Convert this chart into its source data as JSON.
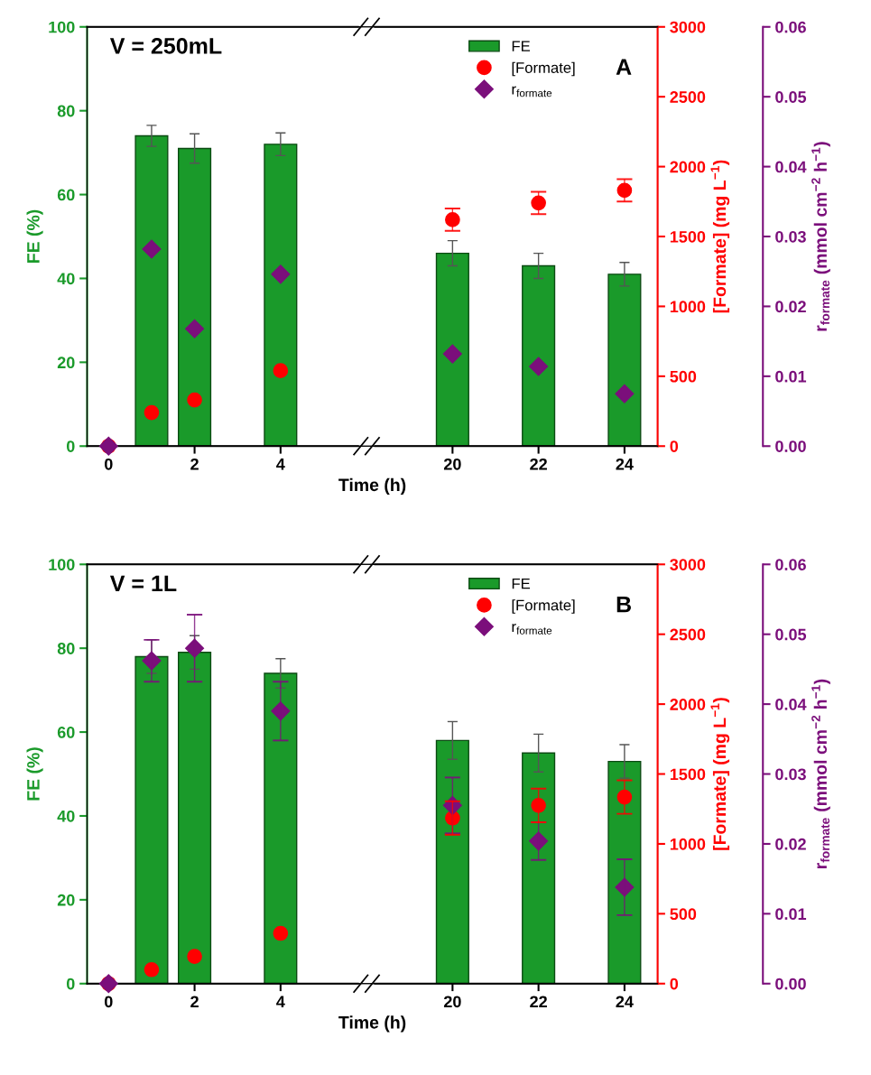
{
  "chart_data": [
    {
      "type": "bar",
      "categories": [
        "0",
        null,
        "2",
        null,
        "4",
        null,
        null,
        null,
        "20",
        null,
        "22",
        null,
        "24"
      ],
      "xlabel": "Time (h)",
      "ylabel": "FE (%)",
      "y2label": "[Formate] (mg L$^{−1}$)",
      "y3label": "r$_{formate}$ (mmol cm$^{−2}$ h$^{−1}$)",
      "annotations": [
        "V = 250mL",
        "A"
      ],
      "ylim": [
        0,
        100
      ],
      "yticks": [
        0,
        20,
        40,
        60,
        80,
        100
      ],
      "y2lim": [
        0,
        3000
      ],
      "y2ticks": [
        0,
        500,
        1000,
        1500,
        2000,
        2500,
        3000
      ],
      "y3lim": [
        0,
        0.06
      ],
      "y3ticks": [
        {
          "value": 0,
          "label": "0.00"
        },
        {
          "value": 0.01,
          "label": "0.01"
        },
        {
          "value": 0.02,
          "label": "0.02"
        },
        {
          "value": 0.03,
          "label": "0.03"
        },
        {
          "value": 0.04,
          "label": "0.04"
        },
        {
          "value": 0.05,
          "label": "0.05"
        },
        {
          "value": 0.06,
          "label": "0.06"
        }
      ],
      "legend": "top right",
      "series": [
        {
          "name": "FE",
          "color": "#1a9a2a",
          "values": [
            null,
            74,
            71,
            null,
            72,
            null,
            null,
            null,
            46,
            null,
            43,
            null,
            41
          ],
          "errors": [
            null,
            2.5,
            3.5,
            null,
            2.7,
            null,
            null,
            null,
            3,
            null,
            3,
            null,
            2.8
          ]
        },
        {
          "name": "[Formate]",
          "type": "scatter",
          "axis": "y2",
          "marker": "circle",
          "color": "#ff0000",
          "values": [
            0,
            240,
            330,
            null,
            540,
            null,
            null,
            null,
            1620,
            null,
            1740,
            null,
            1830
          ],
          "errors": [
            null,
            null,
            null,
            null,
            null,
            null,
            null,
            null,
            80,
            null,
            80,
            null,
            80
          ]
        },
        {
          "name": "r$_{formate}$",
          "type": "scatter",
          "axis": "y3",
          "marker": "diamond",
          "color": "#7b0f7b",
          "values": [
            0,
            0.0282,
            0.0168,
            null,
            0.0246,
            null,
            null,
            null,
            0.0132,
            null,
            0.0114,
            null,
            0.0075
          ]
        }
      ]
    },
    {
      "type": "bar",
      "categories": [
        "0",
        null,
        "2",
        null,
        "4",
        null,
        null,
        null,
        "20",
        null,
        "22",
        null,
        "24"
      ],
      "xlabel": "Time (h)",
      "ylabel": "FE (%)",
      "y2label": "[Formate] (mg L$^{−1}$)",
      "y3label": "r$_{formate}$ (mmol cm$^{−2}$ h$^{−1}$)",
      "annotations": [
        "V = 1L",
        "B"
      ],
      "ylim": [
        0,
        100
      ],
      "yticks": [
        0,
        20,
        40,
        60,
        80,
        100
      ],
      "y2lim": [
        0,
        3000
      ],
      "y2ticks": [
        0,
        500,
        1000,
        1500,
        2000,
        2500,
        3000
      ],
      "y3lim": [
        0,
        0.06
      ],
      "y3ticks": [
        {
          "value": 0,
          "label": "0.00"
        },
        {
          "value": 0.01,
          "label": "0.01"
        },
        {
          "value": 0.02,
          "label": "0.02"
        },
        {
          "value": 0.03,
          "label": "0.03"
        },
        {
          "value": 0.04,
          "label": "0.04"
        },
        {
          "value": 0.05,
          "label": "0.05"
        },
        {
          "value": 0.06,
          "label": "0.06"
        }
      ],
      "legend": "top right",
      "series": [
        {
          "name": "FE",
          "color": "#1a9a2a",
          "values": [
            null,
            78,
            79,
            null,
            74,
            null,
            null,
            null,
            58,
            null,
            55,
            null,
            53
          ],
          "errors": [
            null,
            4,
            4,
            null,
            3.5,
            null,
            null,
            null,
            4.5,
            null,
            4.5,
            null,
            4
          ]
        },
        {
          "name": "[Formate]",
          "type": "scatter",
          "axis": "y2",
          "marker": "circle",
          "color": "#ff0000",
          "values": [
            0,
            100,
            195,
            null,
            360,
            null,
            null,
            null,
            1185,
            null,
            1275,
            null,
            1335
          ],
          "errors": [
            null,
            null,
            null,
            null,
            null,
            null,
            null,
            null,
            120,
            null,
            120,
            null,
            120
          ]
        },
        {
          "name": "r$_{formate}$",
          "type": "scatter",
          "axis": "y3",
          "marker": "diamond",
          "color": "#7b0f7b",
          "values": [
            0,
            0.0462,
            0.048,
            null,
            0.039,
            null,
            null,
            null,
            0.0255,
            null,
            0.0204,
            null,
            0.0138
          ],
          "errors": [
            null,
            0.003,
            0.0048,
            null,
            0.0042,
            null,
            null,
            null,
            0.004,
            null,
            0.0027,
            null,
            0.004
          ]
        }
      ]
    }
  ]
}
